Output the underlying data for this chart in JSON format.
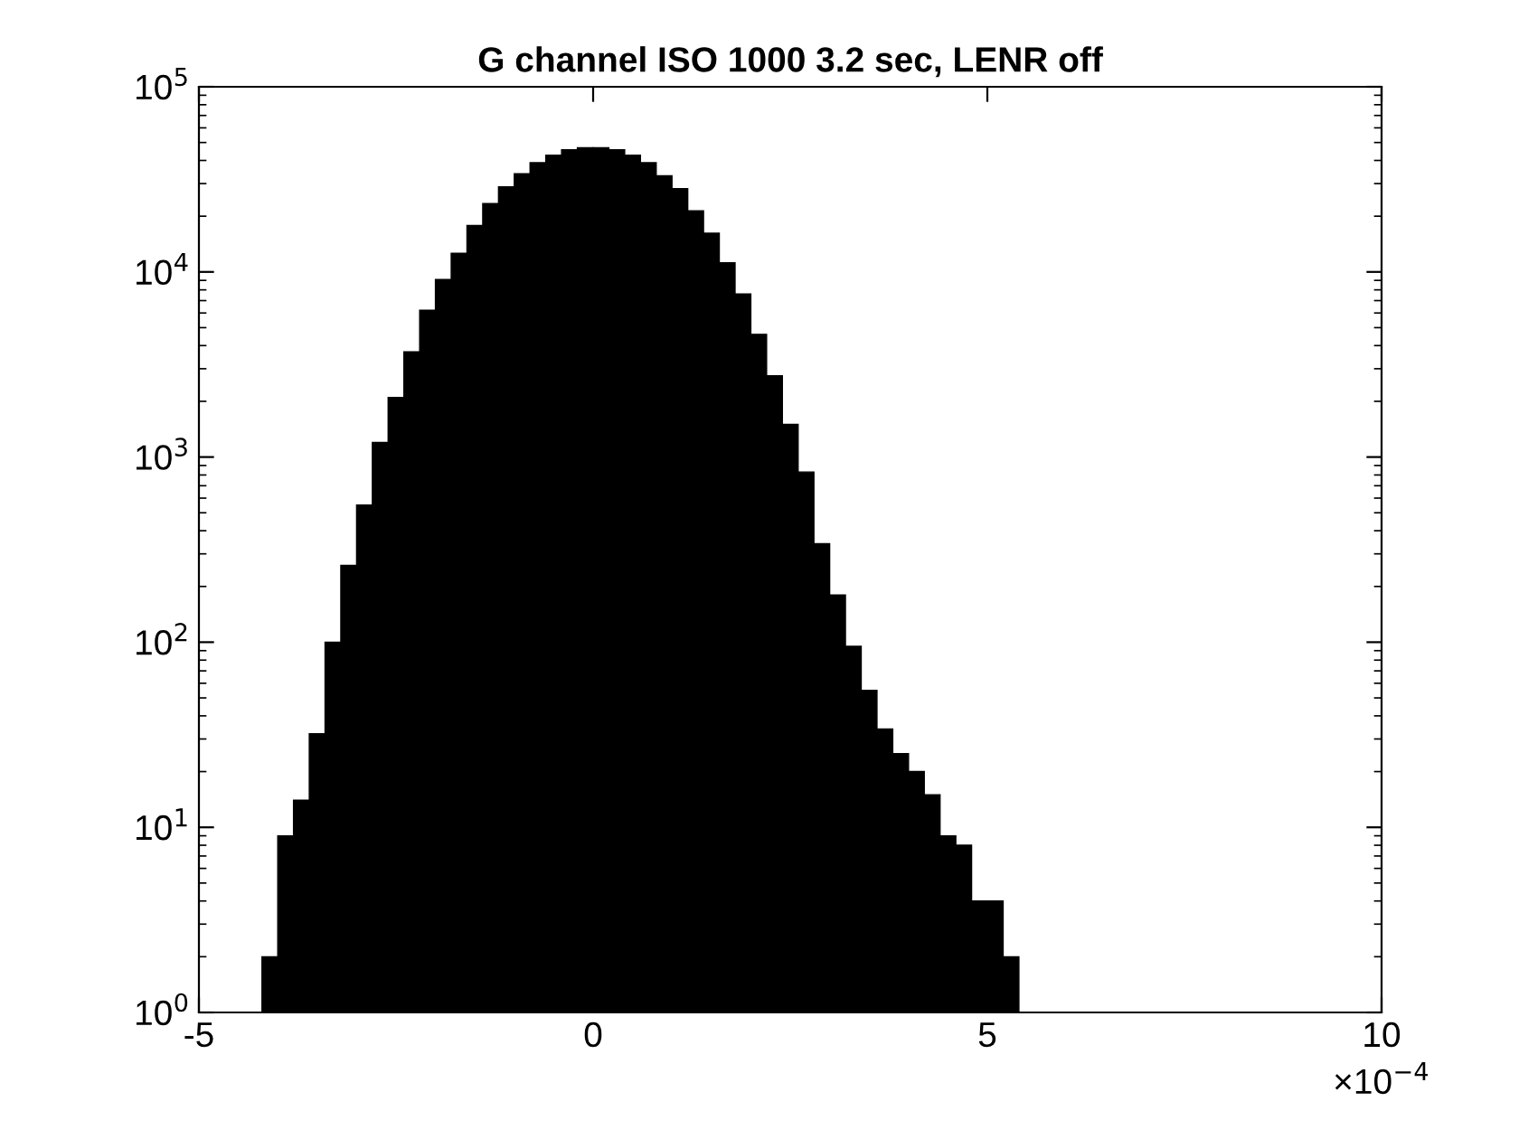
{
  "chart_data": {
    "type": "histogram",
    "title": "G channel ISO 1000 3.2 sec, LENR off",
    "bins": [
      -4.2,
      -4.0,
      -3.8,
      -3.6,
      -3.4,
      -3.2,
      -3.0,
      -2.8,
      -2.6,
      -2.4,
      -2.2,
      -2.0,
      -1.8,
      -1.6,
      -1.4,
      -1.2,
      -1.0,
      -0.8,
      -0.6,
      -0.4,
      -0.2,
      0,
      0.2,
      0.4,
      0.6,
      0.8,
      1.0,
      1.2,
      1.4,
      1.6,
      1.8,
      2.0,
      2.2,
      2.4,
      2.6,
      2.8,
      3.0,
      3.2,
      3.4,
      3.6,
      3.8,
      4.0,
      4.2,
      4.4,
      4.6,
      4.8,
      5.0,
      5.2,
      5.4
    ],
    "values": [
      2,
      9,
      14,
      32,
      100,
      260,
      550,
      1200,
      2100,
      3700,
      6200,
      9100,
      12600,
      17800,
      23400,
      28800,
      33900,
      38900,
      42700,
      45700,
      46800,
      46800,
      45700,
      42700,
      38900,
      33100,
      28200,
      21400,
      16200,
      11200,
      7600,
      4600,
      2750,
      1500,
      830,
      340,
      180,
      95,
      55,
      34,
      25,
      20,
      15,
      9,
      8,
      4,
      4,
      2
    ],
    "color": "#000000",
    "log": "y",
    "xlim": [
      -5,
      10
    ],
    "xticks": [
      -5,
      0,
      5,
      10
    ],
    "ylim": [
      1,
      100000
    ],
    "yticks": [
      {
        "value": 1,
        "label": "10$^{0}$"
      },
      {
        "value": 10,
        "label": "10$^{1}$"
      },
      {
        "value": 100,
        "label": "10$^{2}$"
      },
      {
        "value": 1000,
        "label": "10$^{3}$"
      },
      {
        "value": 10000,
        "label": "10$^{4}$"
      },
      {
        "value": 100000,
        "label": "10$^{5}$"
      }
    ],
    "annotations": [
      "×10$^{−4}$"
    ],
    "grid": false,
    "legend": false
  }
}
